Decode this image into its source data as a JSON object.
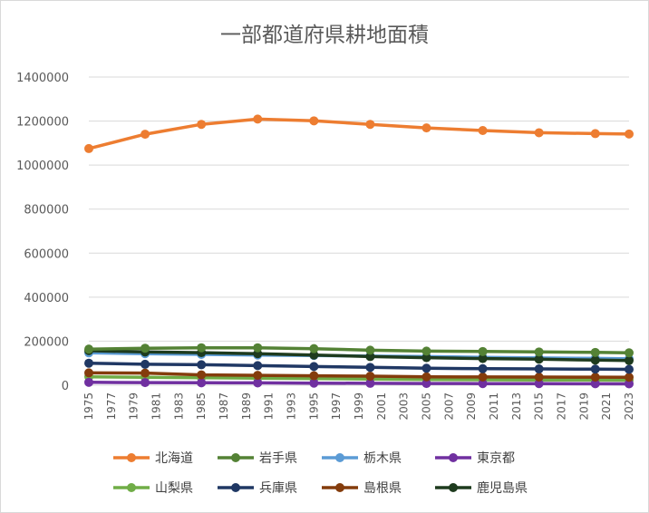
{
  "chart_data": {
    "type": "line",
    "title": "一部都道府県耕地面積",
    "xlabel": "",
    "ylabel": "",
    "ylim": [
      0,
      1400000
    ],
    "ytick_step": 200000,
    "y_ticks": [
      "0",
      "200000",
      "400000",
      "600000",
      "800000",
      "1000000",
      "1200000",
      "1400000"
    ],
    "grid": true,
    "legend_position": "bottom",
    "x_ticks": [
      "1975",
      "1977",
      "1979",
      "1981",
      "1983",
      "1985",
      "1987",
      "1989",
      "1991",
      "1993",
      "1995",
      "1997",
      "1999",
      "2001",
      "2003",
      "2005",
      "2007",
      "2009",
      "2011",
      "2013",
      "2015",
      "2017",
      "2019",
      "2021",
      "2023"
    ],
    "x": [
      1975,
      1980,
      1985,
      1990,
      1995,
      2000,
      2005,
      2010,
      2015,
      2020,
      2023
    ],
    "series": [
      {
        "name": "北海道",
        "color": "#ED7D31",
        "values": [
          1075000,
          1140000,
          1185000,
          1209000,
          1201000,
          1185000,
          1169000,
          1157000,
          1147000,
          1143000,
          1141000
        ]
      },
      {
        "name": "岩手県",
        "color": "#548235",
        "values": [
          164000,
          168000,
          170000,
          170000,
          166000,
          159000,
          155000,
          153000,
          151000,
          149000,
          147000
        ]
      },
      {
        "name": "栃木県",
        "color": "#5B9BD5",
        "values": [
          147000,
          143000,
          140000,
          137000,
          135000,
          132000,
          130000,
          127000,
          124000,
          122000,
          120000
        ]
      },
      {
        "name": "東京都",
        "color": "#7030A0",
        "values": [
          13000,
          12000,
          11000,
          10500,
          9500,
          8500,
          7800,
          7400,
          7100,
          6600,
          6300
        ]
      },
      {
        "name": "山梨県",
        "color": "#70AD47",
        "values": [
          38000,
          36000,
          34000,
          32000,
          30000,
          28000,
          26000,
          24800,
          23900,
          23300,
          22800
        ]
      },
      {
        "name": "兵庫県",
        "color": "#203864",
        "values": [
          100000,
          95000,
          93000,
          89000,
          85000,
          81000,
          77000,
          75000,
          74000,
          73000,
          72000
        ]
      },
      {
        "name": "島根県",
        "color": "#843C0C",
        "values": [
          56000,
          55000,
          47000,
          45000,
          43000,
          41000,
          38000,
          37500,
          37000,
          36500,
          36000
        ]
      },
      {
        "name": "鹿児島県",
        "color": "#1E3B1E",
        "values": [
          157000,
          151000,
          148000,
          143000,
          137000,
          130000,
          125000,
          121000,
          118000,
          114000,
          112000
        ]
      }
    ]
  }
}
